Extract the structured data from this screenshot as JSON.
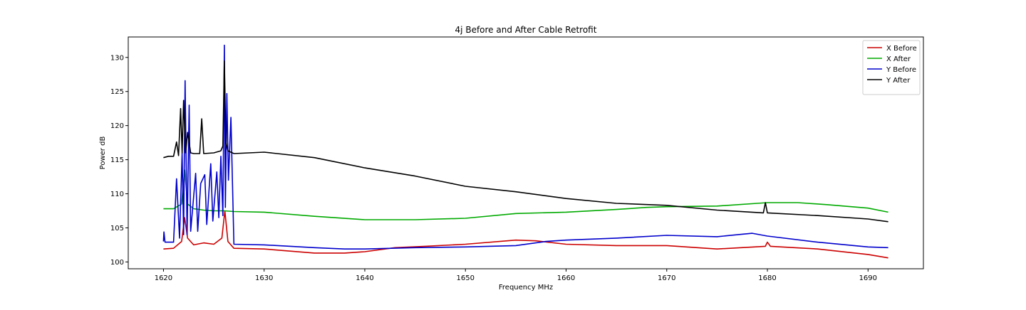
{
  "chart_data": {
    "type": "line",
    "title": "4j Before and After Cable Retrofit",
    "xlabel": "Frequency MHz",
    "ylabel": "Power dB",
    "xlim": [
      1616.5,
      1695.5
    ],
    "ylim": [
      99.0,
      133.0
    ],
    "xticks": [
      1620,
      1630,
      1640,
      1650,
      1660,
      1670,
      1680,
      1690
    ],
    "yticks": [
      100,
      105,
      110,
      115,
      120,
      125,
      130
    ],
    "grid": false,
    "legend_position": "top-right",
    "series": [
      {
        "name": "X Before",
        "color": "#cc0000",
        "x": [
          1620,
          1621,
          1621.8,
          1622.1,
          1622.4,
          1623,
          1624,
          1625,
          1625.8,
          1626.1,
          1626.4,
          1627,
          1630,
          1635,
          1638,
          1640,
          1643,
          1646,
          1650,
          1655,
          1657,
          1660,
          1665,
          1670,
          1675,
          1679.8,
          1680,
          1680.3,
          1685,
          1690,
          1692
        ],
        "y": [
          101.9,
          102.0,
          103.0,
          106.5,
          103.5,
          102.5,
          102.8,
          102.6,
          103.5,
          107.5,
          103.0,
          102.0,
          101.9,
          101.3,
          101.3,
          101.5,
          102.1,
          102.3,
          102.6,
          103.2,
          103.1,
          102.6,
          102.4,
          102.4,
          101.9,
          102.3,
          102.9,
          102.3,
          101.9,
          101.1,
          100.6
        ]
      },
      {
        "name": "X After",
        "color": "#00aa00",
        "x": [
          1620,
          1621,
          1621.8,
          1622.1,
          1622.4,
          1623,
          1624,
          1625,
          1626,
          1627,
          1630,
          1635,
          1640,
          1645,
          1650,
          1655,
          1660,
          1665,
          1668,
          1670,
          1675,
          1680,
          1683,
          1686,
          1690,
          1692
        ],
        "y": [
          107.8,
          107.8,
          108.5,
          113.5,
          108.5,
          107.8,
          107.6,
          107.5,
          107.5,
          107.4,
          107.3,
          106.7,
          106.2,
          106.2,
          106.4,
          107.1,
          107.3,
          107.7,
          108.0,
          108.1,
          108.2,
          108.7,
          108.7,
          108.4,
          107.9,
          107.3
        ]
      },
      {
        "name": "Y Before",
        "color": "#0000cc",
        "x": [
          1620,
          1620.05,
          1620.15,
          1621,
          1621.3,
          1621.6,
          1621.85,
          1622,
          1622.15,
          1622.35,
          1622.55,
          1622.7,
          1623.2,
          1623.4,
          1623.7,
          1624.1,
          1624.3,
          1624.7,
          1624.9,
          1625.3,
          1625.5,
          1625.7,
          1625.9,
          1626.05,
          1626.15,
          1626.3,
          1626.45,
          1626.7,
          1627,
          1630,
          1635,
          1638,
          1640,
          1645,
          1650,
          1655,
          1658,
          1660,
          1665,
          1670,
          1675,
          1678.5,
          1680,
          1685,
          1690,
          1692
        ],
        "y": [
          103.0,
          104.4,
          102.9,
          102.9,
          112.2,
          103.5,
          116.0,
          104.0,
          126.6,
          104.0,
          123.0,
          104.5,
          113.0,
          104.5,
          111.5,
          112.8,
          105.5,
          114.4,
          106.0,
          113.2,
          106.5,
          115.5,
          106.8,
          131.8,
          108.0,
          124.7,
          112.0,
          121.2,
          102.6,
          102.5,
          102.1,
          101.9,
          101.9,
          102.1,
          102.2,
          102.4,
          103.0,
          103.2,
          103.5,
          103.9,
          103.7,
          104.2,
          103.8,
          102.9,
          102.2,
          102.1
        ]
      },
      {
        "name": "Y After",
        "color": "#000000",
        "x": [
          1620,
          1620.5,
          1621,
          1621.3,
          1621.5,
          1621.7,
          1621.85,
          1622,
          1622.2,
          1622.4,
          1622.7,
          1623,
          1623.6,
          1623.8,
          1624,
          1625,
          1625.7,
          1625.9,
          1626.05,
          1626.2,
          1626.4,
          1627,
          1630,
          1635,
          1640,
          1645,
          1650,
          1655,
          1660,
          1665,
          1670,
          1675,
          1679.6,
          1679.8,
          1680,
          1685,
          1690,
          1692
        ],
        "y": [
          115.3,
          115.5,
          115.5,
          117.6,
          115.6,
          122.5,
          116.0,
          123.7,
          116.0,
          119.0,
          116.0,
          115.9,
          115.9,
          121.0,
          115.9,
          116.0,
          116.3,
          117.0,
          129.5,
          117.5,
          116.3,
          115.9,
          116.1,
          115.3,
          113.8,
          112.6,
          111.1,
          110.3,
          109.3,
          108.6,
          108.3,
          107.6,
          107.2,
          108.7,
          107.2,
          106.8,
          106.3,
          105.9
        ]
      }
    ]
  }
}
